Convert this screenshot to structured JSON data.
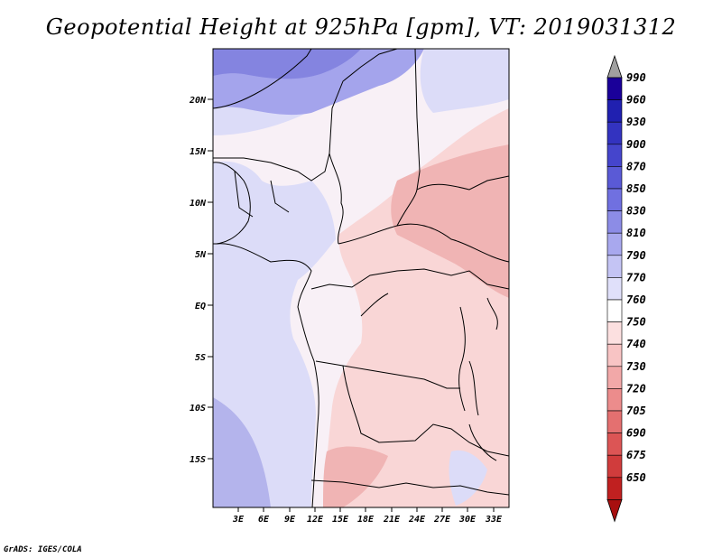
{
  "title": "Geopotential Height at 925hPa [gpm], VT: 2019031312",
  "credit": "GrADS: IGES/COLA",
  "colors": {
    "ocean": "#dcdcf8",
    "ocean_deep": "#b4b4ec",
    "land_neutral": "#fdf2f2",
    "land_warm": "#f7cccc",
    "land_hot": "#f0aeae",
    "north_high": "#8c8ce6",
    "border": "#000000"
  },
  "map": {
    "lat_labels": [
      "20N",
      "15N",
      "10N",
      "5N",
      "EQ",
      "5S",
      "10S",
      "15S"
    ],
    "lon_labels": [
      "3E",
      "6E",
      "9E",
      "12E",
      "15E",
      "18E",
      "21E",
      "24E",
      "27E",
      "30E",
      "33E"
    ]
  },
  "colorbar": {
    "levels": [
      "990",
      "960",
      "930",
      "900",
      "870",
      "850",
      "830",
      "810",
      "790",
      "770",
      "760",
      "750",
      "740",
      "730",
      "720",
      "705",
      "690",
      "675",
      "650"
    ],
    "colors": [
      "#1a0099",
      "#2020b0",
      "#3333c0",
      "#4545cc",
      "#5a5ad6",
      "#7070e0",
      "#8c8ce6",
      "#a8a8ee",
      "#c4c4f4",
      "#e0e0fa",
      "#ffffff",
      "#fce0e0",
      "#f8c4c4",
      "#f2a8a8",
      "#ec8c8c",
      "#e47070",
      "#dc5555",
      "#d03c3c",
      "#c02020",
      "#a80f0f"
    ],
    "top_arrow_color": "#a0a0a0",
    "bottom_arrow_color": "#a00a0a"
  }
}
